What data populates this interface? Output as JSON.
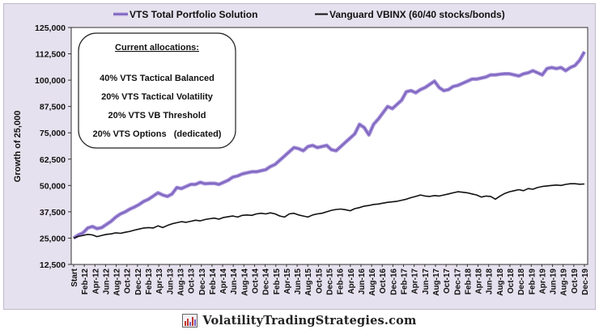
{
  "footer": {
    "text": "VolatilityTradingStrategies.com",
    "logo_icon": "bar-chart-logo-icon"
  },
  "colors": {
    "background": "#e6e1ee",
    "series_vts": "#a08ad6",
    "series_vts_line": "#6a4fb0",
    "series_vbinx": "#111111",
    "plot_bg": "#ffffff"
  },
  "allocation_box": {
    "title": "Current allocations:",
    "items": [
      "40% VTS Tactical Balanced",
      "20% VTS Tactical Volatility",
      "20% VTS VB Threshold",
      "20% VTS Options   (dedicated)"
    ]
  },
  "chart_data": {
    "type": "line",
    "ylabel": "Growth of 25,000",
    "xlabel": "",
    "ylim": [
      12500,
      125000
    ],
    "yticks": [
      12500,
      25000,
      37500,
      50000,
      62500,
      75000,
      87500,
      100000,
      112500,
      125000
    ],
    "ytick_labels": [
      "12,500",
      "25,000",
      "37,500",
      "50,000",
      "62,500",
      "75,000",
      "87,500",
      "100,000",
      "112,500",
      "125,000"
    ],
    "x_labels": [
      "Start",
      "Feb-12",
      "Apr-12",
      "Jun-12",
      "Aug-12",
      "Oct-12",
      "Dec-12",
      "Feb-13",
      "Apr-13",
      "Jun-13",
      "Aug-13",
      "Oct-13",
      "Dec-13",
      "Feb-14",
      "Apr-14",
      "Jun-14",
      "Aug-14",
      "Oct-14",
      "Dec-14",
      "Feb-15",
      "Apr-15",
      "Jun-15",
      "Aug-15",
      "Oct-15",
      "Dec-15",
      "Feb-16",
      "Apr-16",
      "Jun-16",
      "Aug-16",
      "Oct-16",
      "Dec-16",
      "Feb-17",
      "Apr-17",
      "Jun-17",
      "Aug-17",
      "Oct-17",
      "Dec-17",
      "Feb-18",
      "Apr-18",
      "Jun-18",
      "Aug-18",
      "Oct-18",
      "Dec-18",
      "Feb-19",
      "Apr-19",
      "Jun-19",
      "Aug-19",
      "Oct-19",
      "Dec-19"
    ],
    "legend_position": "top",
    "grid": false,
    "series": [
      {
        "name": "VTS Total Portfolio Solution",
        "values": [
          25000,
          26500,
          27500,
          29800,
          30500,
          29500,
          30000,
          31500,
          33000,
          35000,
          36500,
          37500,
          38800,
          39800,
          41000,
          42500,
          43500,
          45000,
          46500,
          45500,
          44800,
          46000,
          49000,
          48500,
          49500,
          50500,
          50500,
          51500,
          50800,
          51000,
          51000,
          50500,
          51500,
          52500,
          54000,
          54500,
          55500,
          56000,
          56500,
          56500,
          57000,
          57500,
          59000,
          60000,
          62000,
          64000,
          66000,
          68000,
          67500,
          66500,
          68500,
          69000,
          68000,
          68500,
          69000,
          67000,
          66500,
          68500,
          70500,
          72500,
          74500,
          79000,
          77500,
          74000,
          79000,
          81500,
          84500,
          87500,
          86500,
          88500,
          90500,
          94500,
          95000,
          94000,
          95500,
          96500,
          98000,
          99500,
          96500,
          95000,
          95500,
          97000,
          97500,
          98500,
          99500,
          100500,
          100500,
          101000,
          101500,
          102500,
          102500,
          102800,
          103000,
          103000,
          102500,
          102000,
          103000,
          103500,
          104500,
          103500,
          102500,
          105500,
          106000,
          105500,
          106000,
          104500,
          106000,
          107000,
          109500,
          113500
        ]
      },
      {
        "name": "Vanguard VBINX  (60/40 stocks/bonds)",
        "values": [
          25000,
          25800,
          26300,
          26800,
          26500,
          25700,
          26300,
          26800,
          27000,
          27500,
          27300,
          27800,
          28200,
          28800,
          29300,
          29800,
          30000,
          29800,
          30800,
          30000,
          31000,
          31800,
          32300,
          32800,
          32500,
          33000,
          33500,
          33200,
          33800,
          34200,
          34500,
          34000,
          34800,
          35200,
          35500,
          35000,
          35800,
          36000,
          35800,
          36500,
          36800,
          36500,
          37000,
          36500,
          35500,
          35000,
          36500,
          36800,
          36000,
          35500,
          35000,
          36000,
          36500,
          36800,
          37500,
          38200,
          38600,
          38800,
          38500,
          38000,
          39000,
          39500,
          40200,
          40500,
          41000,
          41200,
          41600,
          42000,
          42200,
          42500,
          43000,
          43500,
          44200,
          44800,
          45500,
          45000,
          44800,
          45200,
          45000,
          45500,
          46000,
          46500,
          47000,
          46800,
          46500,
          46000,
          45500,
          44500,
          45000,
          44800,
          43500,
          45000,
          46200,
          47000,
          47500,
          48000,
          47500,
          48500,
          48200,
          49000,
          49500,
          49800,
          50000,
          50200,
          50000,
          50500,
          50800,
          50800,
          50600,
          50700
        ]
      }
    ]
  }
}
